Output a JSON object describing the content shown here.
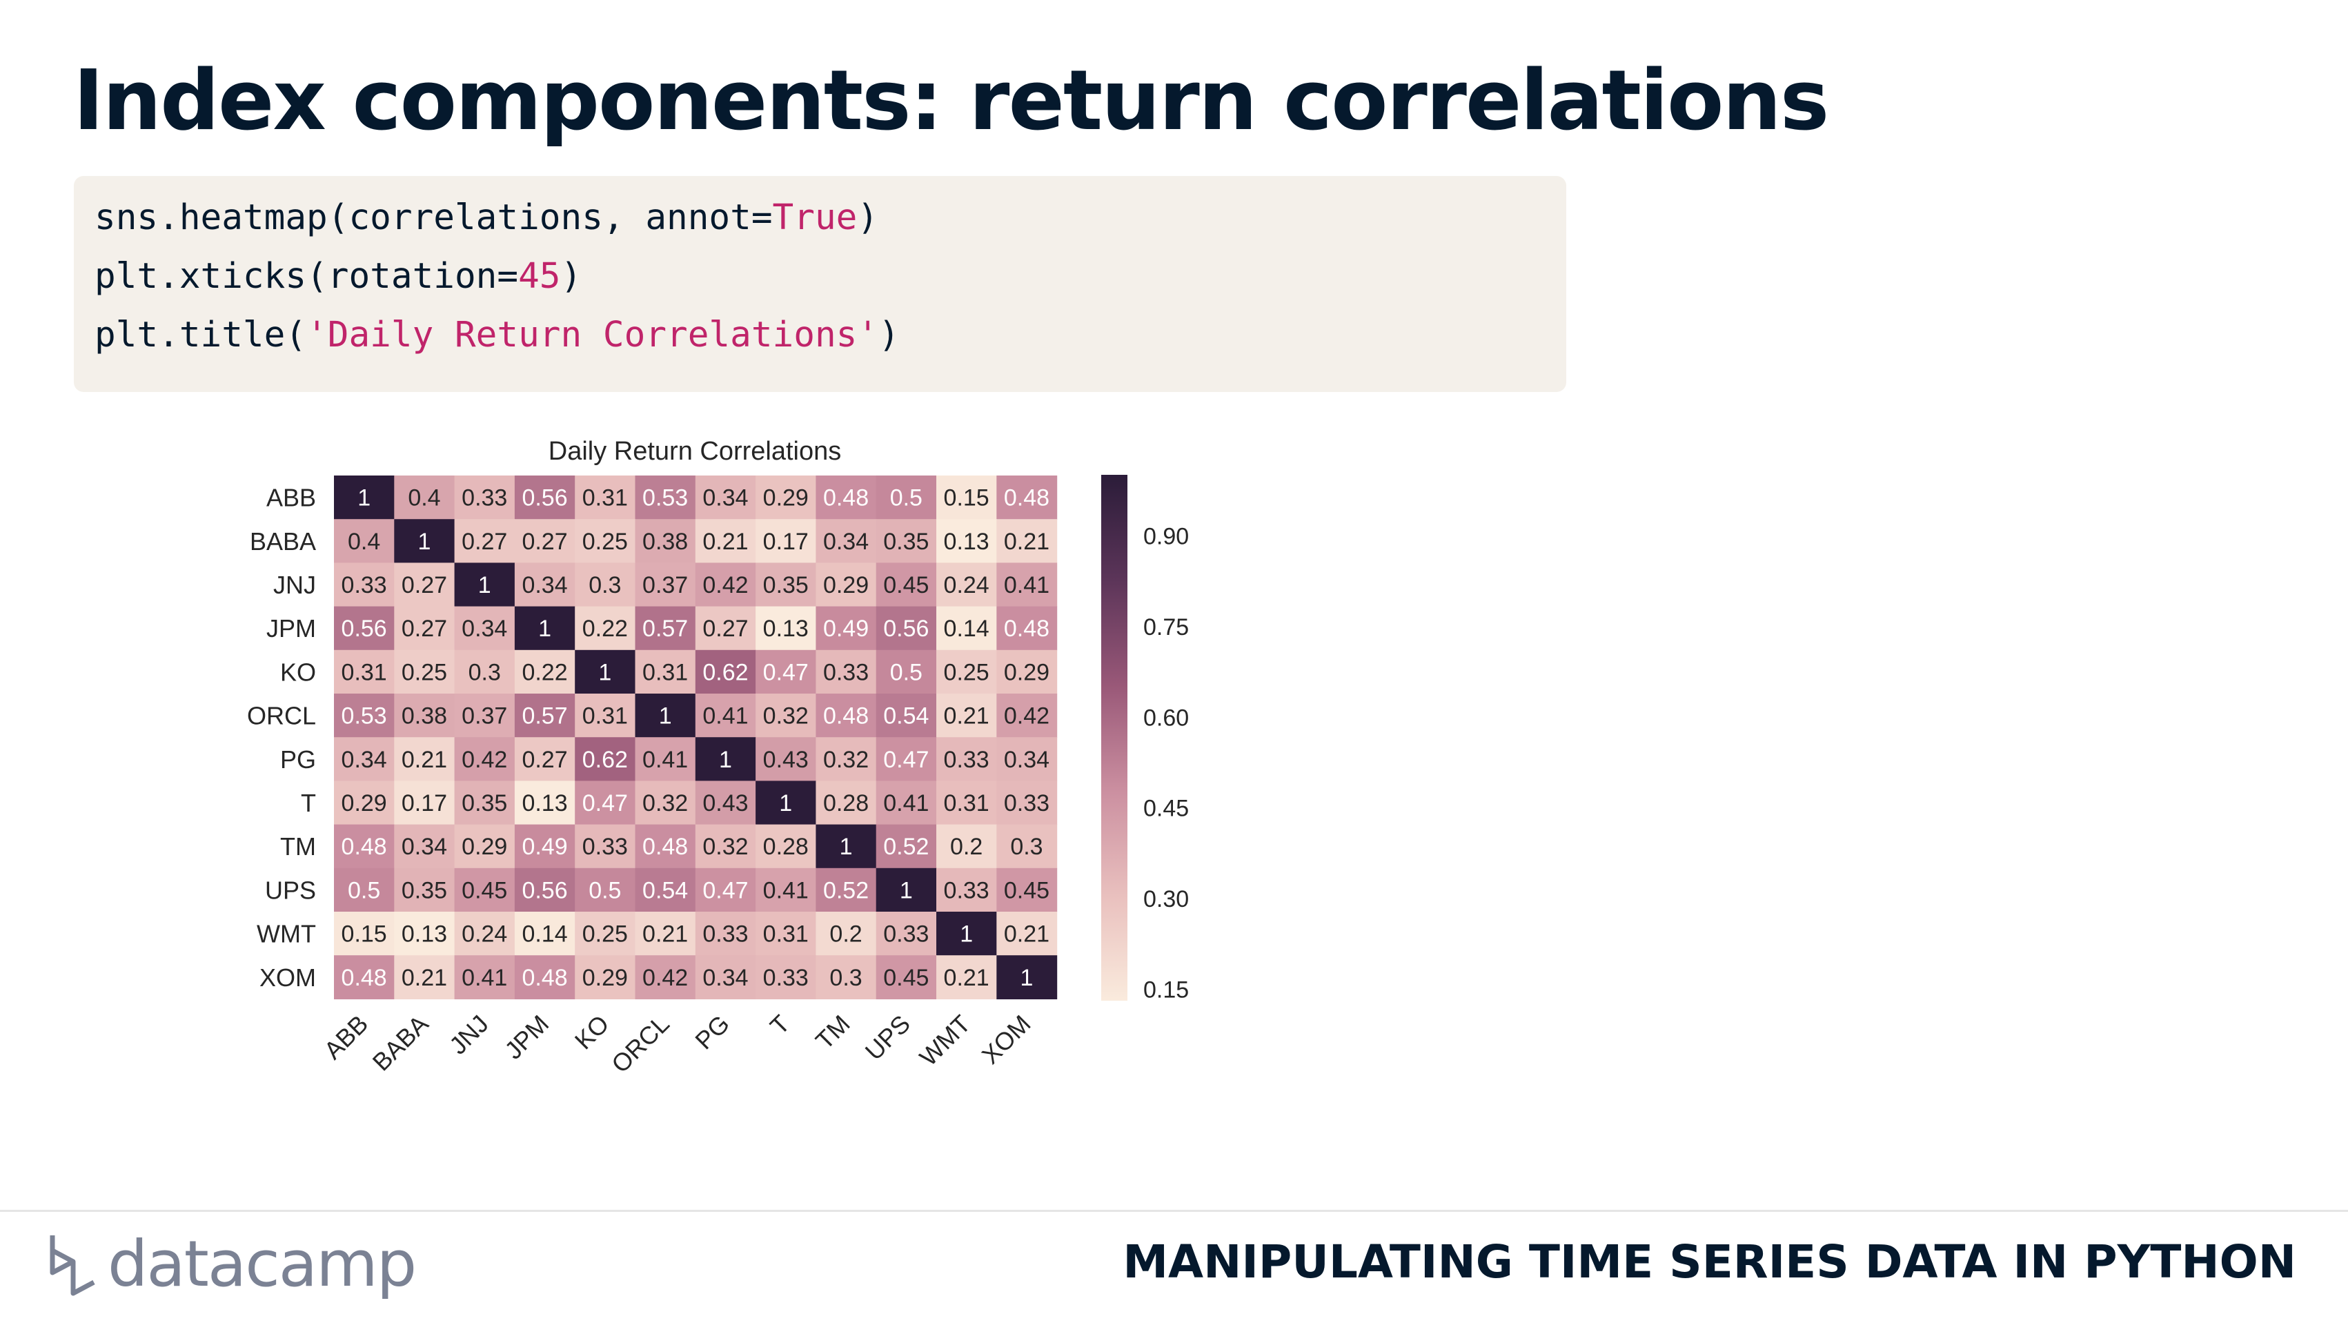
{
  "slide": {
    "title": "Index components: return correlations",
    "course": "MANIPULATING TIME SERIES DATA IN PYTHON",
    "brand": "datacamp"
  },
  "code": {
    "line1": {
      "pre": "sns.heatmap(correlations, annot=",
      "kw": "True",
      "post": ")"
    },
    "line2": {
      "pre": "plt.xticks(rotation=",
      "kw": "45",
      "post": ")"
    },
    "line3": {
      "pre": "plt.title(",
      "kw": "'Daily Return Correlations'",
      "post": ")"
    }
  },
  "colors": {
    "title": "#05192d",
    "keyword": "#c0246a",
    "code_bg": "#f4f0ea",
    "cmap_low": "#faebdd",
    "cmap_mid": "#b56b8a",
    "cmap_high": "#2b1c39"
  },
  "chart_data": {
    "type": "heatmap",
    "title": "Daily Return Correlations",
    "rows": [
      "ABB",
      "BABA",
      "JNJ",
      "JPM",
      "KO",
      "ORCL",
      "PG",
      "T",
      "TM",
      "UPS",
      "WMT",
      "XOM"
    ],
    "cols": [
      "ABB",
      "BABA",
      "JNJ",
      "JPM",
      "KO",
      "ORCL",
      "PG",
      "T",
      "TM",
      "UPS",
      "WMT",
      "XOM"
    ],
    "values": [
      [
        1,
        0.4,
        0.33,
        0.56,
        0.31,
        0.53,
        0.34,
        0.29,
        0.48,
        0.5,
        0.15,
        0.48
      ],
      [
        0.4,
        1,
        0.27,
        0.27,
        0.25,
        0.38,
        0.21,
        0.17,
        0.34,
        0.35,
        0.13,
        0.21
      ],
      [
        0.33,
        0.27,
        1,
        0.34,
        0.3,
        0.37,
        0.42,
        0.35,
        0.29,
        0.45,
        0.24,
        0.41
      ],
      [
        0.56,
        0.27,
        0.34,
        1,
        0.22,
        0.57,
        0.27,
        0.13,
        0.49,
        0.56,
        0.14,
        0.48
      ],
      [
        0.31,
        0.25,
        0.3,
        0.22,
        1,
        0.31,
        0.62,
        0.47,
        0.33,
        0.5,
        0.25,
        0.29
      ],
      [
        0.53,
        0.38,
        0.37,
        0.57,
        0.31,
        1,
        0.41,
        0.32,
        0.48,
        0.54,
        0.21,
        0.42
      ],
      [
        0.34,
        0.21,
        0.42,
        0.27,
        0.62,
        0.41,
        1,
        0.43,
        0.32,
        0.47,
        0.33,
        0.34
      ],
      [
        0.29,
        0.17,
        0.35,
        0.13,
        0.47,
        0.32,
        0.43,
        1,
        0.28,
        0.41,
        0.31,
        0.33
      ],
      [
        0.48,
        0.34,
        0.29,
        0.49,
        0.33,
        0.48,
        0.32,
        0.28,
        1,
        0.52,
        0.2,
        0.3
      ],
      [
        0.5,
        0.35,
        0.45,
        0.56,
        0.5,
        0.54,
        0.47,
        0.41,
        0.52,
        1,
        0.33,
        0.45
      ],
      [
        0.15,
        0.13,
        0.24,
        0.14,
        0.25,
        0.21,
        0.33,
        0.31,
        0.2,
        0.33,
        1,
        0.21
      ],
      [
        0.48,
        0.21,
        0.41,
        0.48,
        0.29,
        0.42,
        0.34,
        0.33,
        0.3,
        0.45,
        0.21,
        1
      ]
    ],
    "annotated": true,
    "xtick_rotation": 45,
    "colorbar": {
      "ticks": [
        "0.15",
        "0.30",
        "0.45",
        "0.60",
        "0.75",
        "0.90"
      ],
      "tick_values": [
        0.15,
        0.3,
        0.45,
        0.6,
        0.75,
        0.9
      ],
      "range": [
        0.13,
        1
      ]
    }
  }
}
